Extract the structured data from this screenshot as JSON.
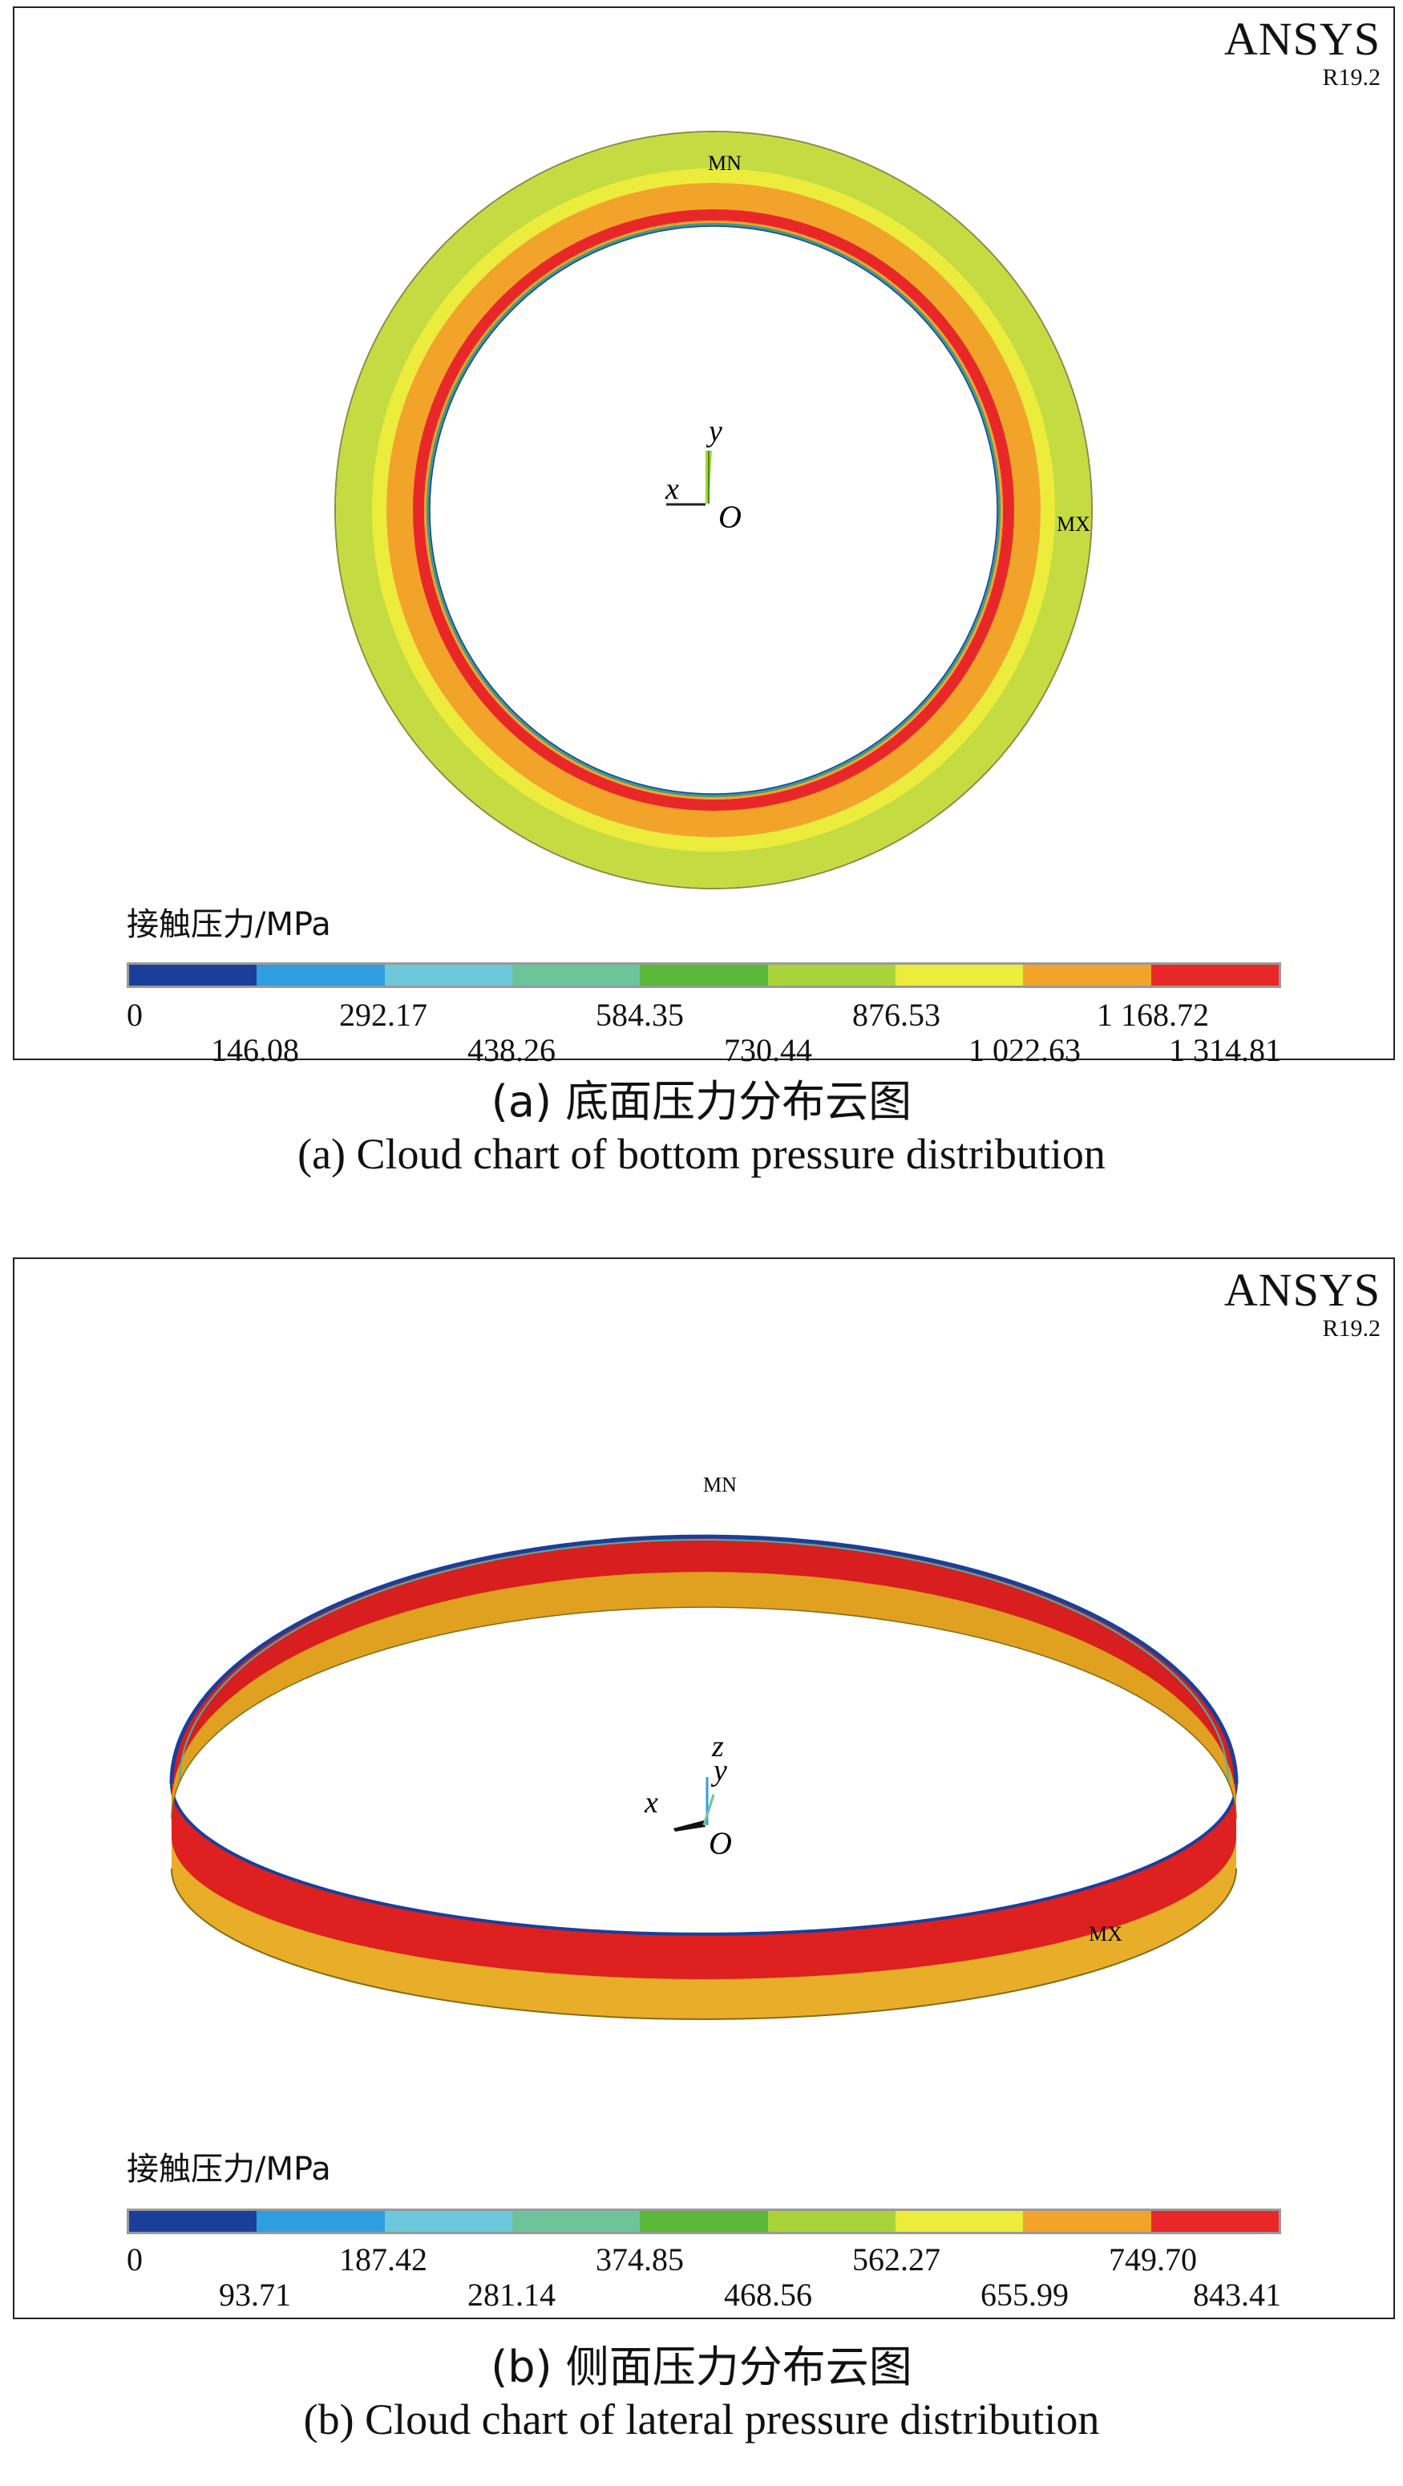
{
  "brand": {
    "name": "ANSYS",
    "version": "R19.2"
  },
  "panels": [
    {
      "id": "a",
      "marks": {
        "min": "MN",
        "max": "MX"
      },
      "axes": {
        "x": "x",
        "y": "y",
        "z": "",
        "origin": "O"
      },
      "legend": {
        "title": "接触压力/MPa",
        "colors": [
          "#1a3f9a",
          "#2f9ee0",
          "#6ec8dc",
          "#6cc49a",
          "#5bb83a",
          "#a8d43a",
          "#ecec3c",
          "#f2a42a",
          "#e82828"
        ],
        "ticks": [
          "0",
          "146.08",
          "292.17",
          "438.26",
          "584.35",
          "730.44",
          "876.53",
          "1 022.63",
          "1 168.72",
          "1 314.81"
        ]
      },
      "caption_zh": "(a) 底面压力分布云图",
      "caption_en": "(a) Cloud chart of bottom pressure distribution"
    },
    {
      "id": "b",
      "marks": {
        "min": "MN",
        "max": "MX"
      },
      "axes": {
        "x": "x",
        "y": "y",
        "z": "z",
        "origin": "O"
      },
      "legend": {
        "title": "接触压力/MPa",
        "colors": [
          "#1a3f9a",
          "#2f9ee0",
          "#6ec8dc",
          "#6cc49a",
          "#5bb83a",
          "#a8d43a",
          "#ecec3c",
          "#f2a42a",
          "#e82828"
        ],
        "ticks": [
          "0",
          "93.71",
          "187.42",
          "281.14",
          "374.85",
          "468.56",
          "562.27",
          "655.99",
          "749.70",
          "843.41"
        ]
      },
      "caption_zh": "(b) 侧面压力分布云图",
      "caption_en": "(b) Cloud chart of lateral pressure distribution"
    }
  ]
}
